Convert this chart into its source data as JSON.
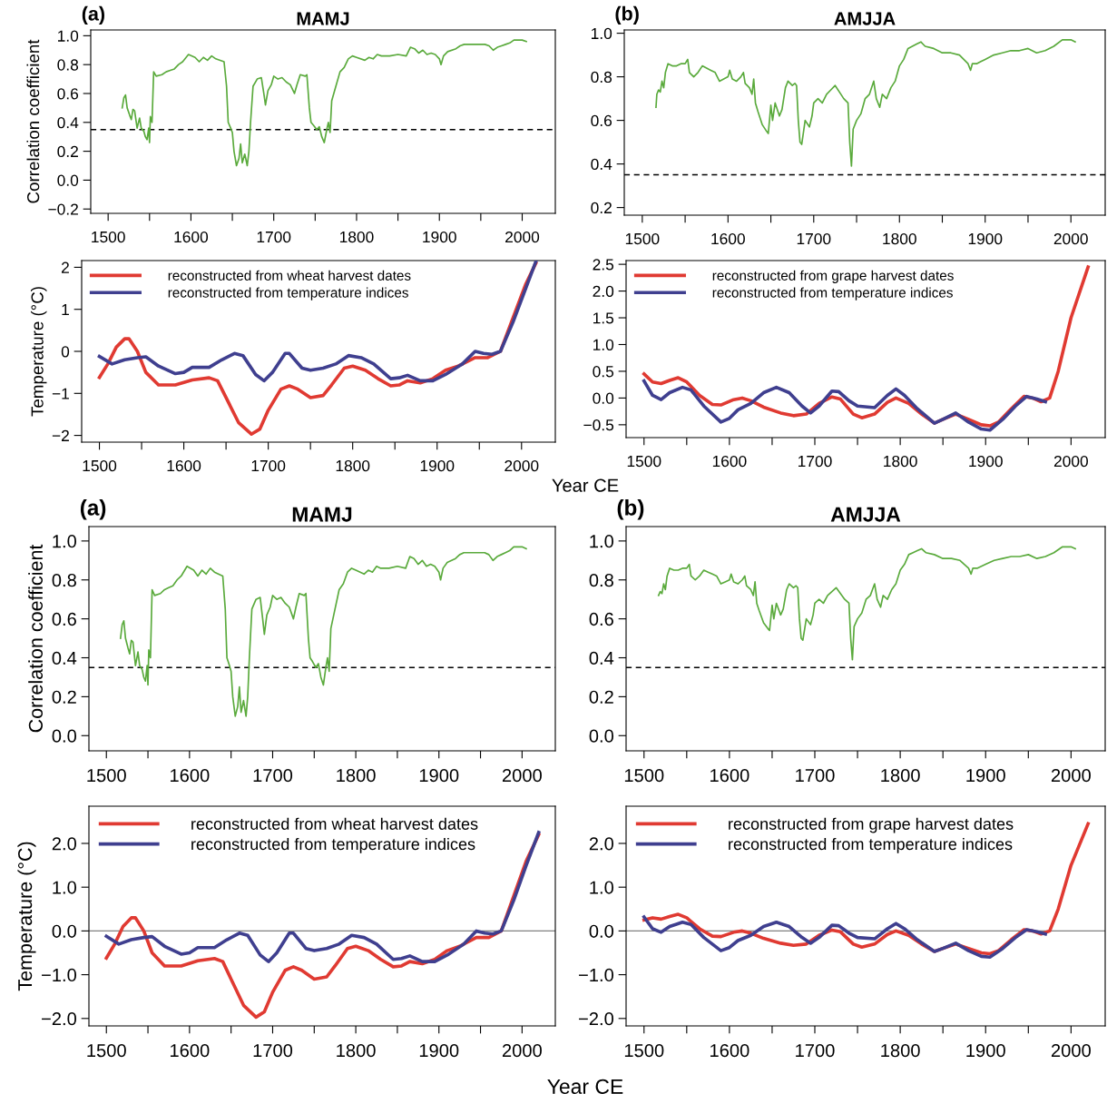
{
  "chart_data": [
    {
      "type": "line",
      "title": "MAMJ",
      "ylabel": "Correlation coefficient",
      "annotations": [
        "(a)"
      ],
      "xlim": [
        1479,
        2040
      ],
      "xticks": [
        1500,
        {
          "value": 1550,
          "label": null
        },
        1600,
        {
          "value": 1650,
          "label": null
        },
        1700,
        {
          "value": 1750,
          "label": null
        },
        1800,
        {
          "value": 1850,
          "label": null
        },
        1900,
        {
          "value": 1950,
          "label": null
        },
        2000
      ],
      "ylim": [
        -0.23,
        1.04
      ],
      "yticks": [
        {
          "value": -0.2,
          "label": "−0.2"
        },
        {
          "value": 0,
          "label": "0.0"
        },
        0.2,
        0.4,
        0.6,
        0.8,
        {
          "value": 1,
          "label": "1.0"
        }
      ],
      "ref_lines": [
        {
          "axis": "y",
          "value": 0.35,
          "color": "#000000",
          "line_style": "dashed"
        }
      ],
      "series": [
        {
          "color": "#5aaa3c",
          "x": [
            1517,
            1519,
            1521,
            1523,
            1526,
            1528,
            1530,
            1532,
            1535,
            1538,
            1540,
            1543,
            1545,
            1547,
            1549,
            1550,
            1551,
            1553,
            1555,
            1558,
            1565,
            1570,
            1575,
            1580,
            1585,
            1590,
            1597,
            1605,
            1610,
            1615,
            1620,
            1625,
            1630,
            1640,
            1643,
            1645,
            1648,
            1650,
            1652,
            1655,
            1658,
            1660,
            1662,
            1665,
            1668,
            1670,
            1672,
            1675,
            1680,
            1685,
            1688,
            1690,
            1693,
            1697,
            1700,
            1705,
            1710,
            1715,
            1720,
            1725,
            1728,
            1732,
            1738,
            1740,
            1743,
            1745,
            1748,
            1752,
            1755,
            1758,
            1761,
            1764,
            1766,
            1768,
            1770,
            1775,
            1780,
            1785,
            1790,
            1795,
            1800,
            1810,
            1815,
            1820,
            1825,
            1830,
            1840,
            1850,
            1860,
            1865,
            1870,
            1875,
            1880,
            1885,
            1890,
            1895,
            1900,
            1902,
            1905,
            1910,
            1920,
            1925,
            1930,
            1940,
            1950,
            1955,
            1960,
            1965,
            1970,
            1975,
            1980,
            1985,
            1990,
            1995,
            2000,
            2005
          ],
          "values": [
            0.5,
            0.57,
            0.59,
            0.5,
            0.45,
            0.42,
            0.49,
            0.48,
            0.36,
            0.43,
            0.36,
            0.34,
            0.3,
            0.28,
            0.36,
            0.26,
            0.44,
            0.4,
            0.75,
            0.72,
            0.73,
            0.75,
            0.76,
            0.77,
            0.8,
            0.82,
            0.87,
            0.85,
            0.82,
            0.85,
            0.83,
            0.86,
            0.84,
            0.82,
            0.65,
            0.4,
            0.36,
            0.33,
            0.2,
            0.1,
            0.15,
            0.25,
            0.12,
            0.18,
            0.1,
            0.2,
            0.4,
            0.65,
            0.7,
            0.71,
            0.6,
            0.52,
            0.62,
            0.66,
            0.72,
            0.7,
            0.71,
            0.68,
            0.66,
            0.6,
            0.66,
            0.73,
            0.72,
            0.73,
            0.5,
            0.4,
            0.38,
            0.35,
            0.37,
            0.3,
            0.26,
            0.35,
            0.4,
            0.33,
            0.55,
            0.65,
            0.75,
            0.78,
            0.84,
            0.86,
            0.85,
            0.83,
            0.85,
            0.84,
            0.87,
            0.86,
            0.86,
            0.87,
            0.86,
            0.92,
            0.91,
            0.88,
            0.9,
            0.87,
            0.88,
            0.87,
            0.84,
            0.8,
            0.86,
            0.89,
            0.91,
            0.93,
            0.94,
            0.94,
            0.94,
            0.94,
            0.93,
            0.9,
            0.92,
            0.93,
            0.94,
            0.95,
            0.97,
            0.97,
            0.97,
            0.96
          ]
        }
      ]
    },
    {
      "type": "line",
      "title": "AMJJA",
      "annotations": [
        "(b)"
      ],
      "xlim": [
        1479,
        2040
      ],
      "xticks": [
        1500,
        {
          "value": 1550,
          "label": null
        },
        1600,
        {
          "value": 1650,
          "label": null
        },
        1700,
        {
          "value": 1750,
          "label": null
        },
        1800,
        {
          "value": 1850,
          "label": null
        },
        1900,
        {
          "value": 1950,
          "label": null
        },
        2000
      ],
      "ylim": [
        0.165,
        1.015
      ],
      "yticks": [
        0.2,
        0.4,
        0.6,
        0.8,
        {
          "value": 1,
          "label": "1.0"
        }
      ],
      "ref_lines": [
        {
          "axis": "y",
          "value": 0.35,
          "color": "#000000",
          "line_style": "dashed"
        }
      ],
      "series": [
        {
          "color": "#5aaa3c",
          "x": [
            1516,
            1517,
            1519,
            1521,
            1523,
            1525,
            1527,
            1530,
            1535,
            1540,
            1545,
            1550,
            1553,
            1555,
            1560,
            1565,
            1570,
            1575,
            1580,
            1585,
            1590,
            1595,
            1600,
            1602,
            1605,
            1610,
            1615,
            1618,
            1620,
            1625,
            1628,
            1630,
            1632,
            1635,
            1640,
            1645,
            1647,
            1650,
            1652,
            1655,
            1660,
            1663,
            1667,
            1670,
            1675,
            1678,
            1680,
            1682,
            1684,
            1686,
            1690,
            1695,
            1698,
            1700,
            1705,
            1710,
            1715,
            1720,
            1725,
            1730,
            1735,
            1740,
            1742,
            1744,
            1746,
            1750,
            1755,
            1760,
            1765,
            1770,
            1773,
            1777,
            1780,
            1785,
            1790,
            1795,
            1800,
            1805,
            1810,
            1815,
            1820,
            1825,
            1830,
            1840,
            1850,
            1860,
            1870,
            1875,
            1880,
            1883,
            1885,
            1890,
            1895,
            1900,
            1910,
            1920,
            1930,
            1940,
            1950,
            1960,
            1970,
            1980,
            1990,
            2000,
            2005
          ],
          "values": [
            0.66,
            0.72,
            0.74,
            0.73,
            0.78,
            0.75,
            0.82,
            0.86,
            0.85,
            0.85,
            0.86,
            0.86,
            0.88,
            0.82,
            0.8,
            0.82,
            0.85,
            0.84,
            0.83,
            0.82,
            0.78,
            0.79,
            0.8,
            0.83,
            0.79,
            0.78,
            0.8,
            0.82,
            0.77,
            0.75,
            0.72,
            0.79,
            0.68,
            0.64,
            0.58,
            0.55,
            0.54,
            0.67,
            0.6,
            0.68,
            0.62,
            0.65,
            0.75,
            0.78,
            0.76,
            0.77,
            0.76,
            0.6,
            0.5,
            0.49,
            0.6,
            0.57,
            0.62,
            0.68,
            0.7,
            0.68,
            0.72,
            0.74,
            0.76,
            0.73,
            0.7,
            0.68,
            0.5,
            0.39,
            0.56,
            0.6,
            0.63,
            0.7,
            0.72,
            0.78,
            0.7,
            0.66,
            0.72,
            0.7,
            0.75,
            0.78,
            0.85,
            0.88,
            0.93,
            0.94,
            0.95,
            0.96,
            0.94,
            0.93,
            0.91,
            0.91,
            0.9,
            0.88,
            0.86,
            0.83,
            0.86,
            0.86,
            0.87,
            0.88,
            0.9,
            0.91,
            0.92,
            0.92,
            0.93,
            0.91,
            0.92,
            0.94,
            0.97,
            0.97,
            0.96
          ]
        }
      ]
    },
    {
      "type": "line",
      "ylabel": "Temperature (°C)",
      "xlabel": "Year CE",
      "legend": "top left",
      "xlim": [
        1479,
        2040
      ],
      "xticks": [
        1500,
        {
          "value": 1550,
          "label": null
        },
        1600,
        {
          "value": 1650,
          "label": null
        },
        1700,
        {
          "value": 1750,
          "label": null
        },
        1800,
        {
          "value": 1850,
          "label": null
        },
        1900,
        {
          "value": 1950,
          "label": null
        },
        2000
      ],
      "ylim": [
        -2.16,
        2.16
      ],
      "yticks": [
        {
          "value": -2,
          "label": "−2"
        },
        {
          "value": -1,
          "label": "−1"
        },
        0,
        1,
        2
      ],
      "series": [
        {
          "name": "reconstructed from wheat harvest dates",
          "color": "#e03a32",
          "x": [
            1500,
            1510,
            1520,
            1530,
            1535,
            1545,
            1555,
            1570,
            1590,
            1610,
            1630,
            1640,
            1650,
            1665,
            1680,
            1690,
            1700,
            1715,
            1725,
            1735,
            1750,
            1765,
            1775,
            1790,
            1800,
            1815,
            1830,
            1845,
            1855,
            1865,
            1880,
            1895,
            1910,
            1925,
            1945,
            1960,
            1975,
            1990,
            2005,
            2017
          ],
          "values": [
            -0.62,
            -0.3,
            0.1,
            0.3,
            0.3,
            0.0,
            -0.5,
            -0.8,
            -0.8,
            -0.68,
            -0.63,
            -0.7,
            -1.1,
            -1.7,
            -1.97,
            -1.85,
            -1.4,
            -0.9,
            -0.82,
            -0.9,
            -1.1,
            -1.05,
            -0.8,
            -0.4,
            -0.35,
            -0.45,
            -0.65,
            -0.82,
            -0.8,
            -0.7,
            -0.75,
            -0.65,
            -0.45,
            -0.35,
            -0.15,
            -0.15,
            0.0,
            0.8,
            1.6,
            2.1
          ]
        },
        {
          "name": "reconstructed from temperature indices",
          "color": "#3f3f8f",
          "x": [
            1500,
            1515,
            1530,
            1545,
            1555,
            1570,
            1590,
            1600,
            1610,
            1630,
            1645,
            1660,
            1670,
            1685,
            1695,
            1705,
            1720,
            1725,
            1740,
            1750,
            1765,
            1780,
            1795,
            1810,
            1825,
            1845,
            1855,
            1865,
            1880,
            1895,
            1910,
            1930,
            1945,
            1955,
            1965,
            1975,
            1990,
            2005,
            2017
          ],
          "values": [
            -0.12,
            -0.3,
            -0.2,
            -0.15,
            -0.13,
            -0.35,
            -0.53,
            -0.5,
            -0.38,
            -0.38,
            -0.2,
            -0.05,
            -0.1,
            -0.55,
            -0.7,
            -0.5,
            -0.05,
            -0.05,
            -0.4,
            -0.45,
            -0.4,
            -0.3,
            -0.1,
            -0.15,
            -0.3,
            -0.65,
            -0.63,
            -0.57,
            -0.7,
            -0.7,
            -0.55,
            -0.3,
            0.0,
            -0.05,
            -0.07,
            0.0,
            0.7,
            1.5,
            2.14
          ]
        }
      ]
    },
    {
      "type": "line",
      "legend": "top left",
      "xlim": [
        1479,
        2040
      ],
      "xticks": [
        1500,
        {
          "value": 1550,
          "label": null
        },
        1600,
        {
          "value": 1650,
          "label": null
        },
        1700,
        {
          "value": 1750,
          "label": null
        },
        1800,
        {
          "value": 1850,
          "label": null
        },
        1900,
        {
          "value": 1950,
          "label": null
        },
        2000
      ],
      "ylim": [
        -0.74,
        2.57
      ],
      "yticks": [
        {
          "value": -0.5,
          "label": "−0.5"
        },
        {
          "value": 0,
          "label": "0.0"
        },
        0.5,
        {
          "value": 1,
          "label": "1.0"
        },
        1.5,
        {
          "value": 2,
          "label": "2.0"
        },
        2.5
      ],
      "series": [
        {
          "name": "reconstructed from grape harvest dates",
          "color": "#e03a32",
          "x": [
            1500,
            1510,
            1520,
            1530,
            1540,
            1550,
            1565,
            1580,
            1590,
            1605,
            1615,
            1625,
            1640,
            1660,
            1675,
            1690,
            1705,
            1720,
            1730,
            1745,
            1755,
            1770,
            1785,
            1795,
            1810,
            1825,
            1840,
            1850,
            1865,
            1880,
            1895,
            1905,
            1915,
            1930,
            1945,
            1955,
            1965,
            1975,
            1985,
            2000,
            2020
          ],
          "values": [
            0.45,
            0.3,
            0.27,
            0.33,
            0.38,
            0.3,
            0.05,
            -0.12,
            -0.13,
            -0.03,
            0.0,
            -0.05,
            -0.17,
            -0.28,
            -0.33,
            -0.3,
            -0.1,
            0.02,
            -0.02,
            -0.3,
            -0.37,
            -0.3,
            -0.08,
            0.0,
            -0.1,
            -0.3,
            -0.47,
            -0.4,
            -0.3,
            -0.4,
            -0.5,
            -0.52,
            -0.45,
            -0.2,
            0.03,
            0.0,
            -0.07,
            0.0,
            0.5,
            1.5,
            2.45
          ]
        },
        {
          "name": "reconstructed from temperature indices",
          "color": "#3f3f8f",
          "x": [
            1500,
            1510,
            1520,
            1530,
            1545,
            1555,
            1570,
            1590,
            1600,
            1610,
            1625,
            1640,
            1655,
            1670,
            1685,
            1695,
            1705,
            1720,
            1728,
            1740,
            1750,
            1770,
            1785,
            1795,
            1805,
            1820,
            1840,
            1850,
            1865,
            1880,
            1895,
            1905,
            1920,
            1935,
            1948,
            1960,
            1970
          ],
          "values": [
            0.32,
            0.05,
            -0.03,
            0.1,
            0.2,
            0.15,
            -0.15,
            -0.45,
            -0.38,
            -0.22,
            -0.1,
            0.1,
            0.2,
            0.1,
            -0.15,
            -0.28,
            -0.15,
            0.13,
            0.12,
            -0.05,
            -0.15,
            -0.18,
            0.05,
            0.17,
            0.05,
            -0.2,
            -0.47,
            -0.4,
            -0.28,
            -0.45,
            -0.58,
            -0.6,
            -0.4,
            -0.15,
            0.03,
            -0.02,
            -0.07
          ]
        }
      ]
    },
    {
      "type": "line",
      "title": "MAMJ",
      "ylabel": "Correlation coefficient",
      "annotations": [
        "(a)"
      ],
      "xlim": [
        1479,
        2040
      ],
      "xticks": [
        1500,
        {
          "value": 1550,
          "label": null
        },
        1600,
        {
          "value": 1650,
          "label": null
        },
        1700,
        {
          "value": 1750,
          "label": null
        },
        1800,
        {
          "value": 1850,
          "label": null
        },
        1900,
        {
          "value": 1950,
          "label": null
        },
        2000
      ],
      "ylim": [
        -0.078,
        1.074
      ],
      "yticks": [
        {
          "value": 0,
          "label": "0.0"
        },
        {
          "value": 0.2,
          "label": "0.2"
        },
        {
          "value": 0.4,
          "label": "0.4"
        },
        {
          "value": 0.6,
          "label": "0.6"
        },
        {
          "value": 0.8,
          "label": "0.8"
        },
        {
          "value": 1,
          "label": "1.0"
        }
      ],
      "ref_lines": [
        {
          "axis": "y",
          "value": 0.35,
          "color": "#000000",
          "line_style": "dashed"
        }
      ],
      "series": [
        {
          "color": "#5aaa3c",
          "x": [
            1517,
            1519,
            1521,
            1523,
            1526,
            1528,
            1530,
            1532,
            1535,
            1538,
            1540,
            1543,
            1545,
            1547,
            1549,
            1550,
            1551,
            1553,
            1555,
            1558,
            1565,
            1570,
            1575,
            1580,
            1585,
            1590,
            1597,
            1605,
            1610,
            1615,
            1620,
            1625,
            1630,
            1640,
            1643,
            1645,
            1648,
            1650,
            1652,
            1655,
            1658,
            1660,
            1662,
            1665,
            1668,
            1670,
            1672,
            1675,
            1680,
            1685,
            1688,
            1690,
            1693,
            1697,
            1700,
            1705,
            1710,
            1715,
            1720,
            1725,
            1728,
            1732,
            1738,
            1740,
            1743,
            1745,
            1748,
            1752,
            1755,
            1758,
            1761,
            1764,
            1766,
            1768,
            1770,
            1775,
            1780,
            1785,
            1790,
            1795,
            1800,
            1810,
            1815,
            1820,
            1825,
            1830,
            1840,
            1850,
            1860,
            1865,
            1870,
            1875,
            1880,
            1885,
            1890,
            1895,
            1900,
            1902,
            1905,
            1910,
            1920,
            1925,
            1930,
            1940,
            1950,
            1955,
            1960,
            1965,
            1970,
            1975,
            1980,
            1985,
            1990,
            1995,
            2000,
            2005
          ],
          "values": [
            0.5,
            0.57,
            0.59,
            0.5,
            0.45,
            0.42,
            0.49,
            0.48,
            0.36,
            0.43,
            0.36,
            0.34,
            0.3,
            0.28,
            0.36,
            0.26,
            0.44,
            0.4,
            0.75,
            0.72,
            0.73,
            0.75,
            0.76,
            0.77,
            0.8,
            0.82,
            0.87,
            0.85,
            0.82,
            0.85,
            0.83,
            0.86,
            0.84,
            0.82,
            0.65,
            0.4,
            0.36,
            0.33,
            0.2,
            0.1,
            0.15,
            0.25,
            0.12,
            0.18,
            0.1,
            0.2,
            0.4,
            0.65,
            0.7,
            0.71,
            0.6,
            0.52,
            0.62,
            0.66,
            0.72,
            0.7,
            0.71,
            0.68,
            0.66,
            0.6,
            0.66,
            0.73,
            0.72,
            0.73,
            0.5,
            0.4,
            0.38,
            0.35,
            0.37,
            0.3,
            0.26,
            0.35,
            0.4,
            0.33,
            0.55,
            0.65,
            0.75,
            0.78,
            0.84,
            0.86,
            0.85,
            0.83,
            0.85,
            0.84,
            0.87,
            0.86,
            0.86,
            0.87,
            0.86,
            0.92,
            0.91,
            0.88,
            0.9,
            0.87,
            0.88,
            0.87,
            0.84,
            0.8,
            0.86,
            0.89,
            0.91,
            0.93,
            0.94,
            0.94,
            0.94,
            0.94,
            0.93,
            0.9,
            0.92,
            0.93,
            0.94,
            0.95,
            0.97,
            0.97,
            0.97,
            0.96
          ]
        }
      ]
    },
    {
      "type": "line",
      "title": "AMJJA",
      "annotations": [
        "(b)"
      ],
      "xlim": [
        1479,
        2040
      ],
      "xticks": [
        1500,
        {
          "value": 1550,
          "label": null
        },
        1600,
        {
          "value": 1650,
          "label": null
        },
        1700,
        {
          "value": 1750,
          "label": null
        },
        1800,
        {
          "value": 1850,
          "label": null
        },
        1900,
        {
          "value": 1950,
          "label": null
        },
        2000
      ],
      "ylim": [
        -0.078,
        1.074
      ],
      "yticks": [
        {
          "value": 0,
          "label": "0.0"
        },
        {
          "value": 0.2,
          "label": "0.2"
        },
        {
          "value": 0.4,
          "label": "0.4"
        },
        {
          "value": 0.6,
          "label": "0.6"
        },
        {
          "value": 0.8,
          "label": "0.8"
        },
        {
          "value": 1,
          "label": "1.0"
        }
      ],
      "ref_lines": [
        {
          "axis": "y",
          "value": 0.35,
          "color": "#000000",
          "line_style": "dashed"
        }
      ],
      "series": [
        {
          "color": "#5aaa3c",
          "x": [
            1517,
            1519,
            1521,
            1523,
            1525,
            1527,
            1530,
            1535,
            1540,
            1545,
            1550,
            1553,
            1555,
            1560,
            1565,
            1570,
            1575,
            1580,
            1585,
            1590,
            1595,
            1600,
            1602,
            1605,
            1610,
            1615,
            1618,
            1620,
            1625,
            1628,
            1630,
            1632,
            1635,
            1640,
            1645,
            1647,
            1650,
            1652,
            1655,
            1660,
            1663,
            1667,
            1670,
            1675,
            1678,
            1680,
            1682,
            1684,
            1686,
            1690,
            1695,
            1698,
            1700,
            1705,
            1710,
            1715,
            1720,
            1725,
            1730,
            1735,
            1740,
            1742,
            1744,
            1746,
            1750,
            1755,
            1760,
            1765,
            1770,
            1773,
            1777,
            1780,
            1785,
            1790,
            1795,
            1800,
            1805,
            1810,
            1815,
            1820,
            1825,
            1830,
            1840,
            1850,
            1860,
            1870,
            1875,
            1880,
            1883,
            1885,
            1890,
            1895,
            1900,
            1910,
            1920,
            1930,
            1940,
            1950,
            1960,
            1970,
            1980,
            1990,
            2000,
            2005
          ],
          "values": [
            0.72,
            0.74,
            0.73,
            0.78,
            0.75,
            0.82,
            0.86,
            0.85,
            0.85,
            0.86,
            0.86,
            0.88,
            0.82,
            0.8,
            0.82,
            0.85,
            0.84,
            0.83,
            0.82,
            0.78,
            0.79,
            0.8,
            0.83,
            0.79,
            0.78,
            0.8,
            0.82,
            0.77,
            0.75,
            0.72,
            0.79,
            0.68,
            0.64,
            0.58,
            0.55,
            0.54,
            0.67,
            0.6,
            0.68,
            0.62,
            0.65,
            0.75,
            0.78,
            0.76,
            0.77,
            0.76,
            0.6,
            0.5,
            0.49,
            0.6,
            0.57,
            0.62,
            0.68,
            0.7,
            0.68,
            0.72,
            0.74,
            0.76,
            0.73,
            0.7,
            0.68,
            0.5,
            0.39,
            0.56,
            0.6,
            0.63,
            0.7,
            0.72,
            0.78,
            0.7,
            0.66,
            0.72,
            0.7,
            0.75,
            0.78,
            0.85,
            0.88,
            0.93,
            0.94,
            0.95,
            0.96,
            0.94,
            0.93,
            0.91,
            0.91,
            0.9,
            0.88,
            0.86,
            0.83,
            0.86,
            0.86,
            0.87,
            0.88,
            0.9,
            0.91,
            0.92,
            0.92,
            0.93,
            0.91,
            0.92,
            0.94,
            0.97,
            0.97,
            0.96
          ]
        }
      ]
    },
    {
      "type": "line",
      "ylabel": "Temperature (°C)",
      "xlabel": "Year CE",
      "legend": "top left",
      "xlim": [
        1479,
        2040
      ],
      "xticks": [
        1500,
        {
          "value": 1550,
          "label": null
        },
        1600,
        {
          "value": 1650,
          "label": null
        },
        1700,
        {
          "value": 1750,
          "label": null
        },
        1800,
        {
          "value": 1850,
          "label": null
        },
        1900,
        {
          "value": 1950,
          "label": null
        },
        2000
      ],
      "ylim": [
        -2.17,
        2.85
      ],
      "yticks": [
        {
          "value": -2,
          "label": "−2.0"
        },
        {
          "value": -1,
          "label": "−1.0"
        },
        {
          "value": 0,
          "label": "0.0"
        },
        {
          "value": 1,
          "label": "1.0"
        },
        {
          "value": 2,
          "label": "2.0"
        }
      ],
      "ref_lines": [
        {
          "axis": "y",
          "value": 0,
          "color": "#808080",
          "line_style": "solid"
        }
      ],
      "series": [
        {
          "name": "reconstructed from wheat harvest dates",
          "color": "#e03a32",
          "x": [
            1500,
            1510,
            1520,
            1530,
            1535,
            1545,
            1555,
            1570,
            1590,
            1610,
            1630,
            1640,
            1650,
            1665,
            1680,
            1690,
            1700,
            1715,
            1725,
            1735,
            1750,
            1765,
            1775,
            1790,
            1800,
            1815,
            1830,
            1845,
            1855,
            1865,
            1880,
            1895,
            1910,
            1925,
            1945,
            1960,
            1975,
            1990,
            2005,
            2020
          ],
          "values": [
            -0.62,
            -0.3,
            0.1,
            0.3,
            0.3,
            0.0,
            -0.5,
            -0.8,
            -0.8,
            -0.68,
            -0.63,
            -0.7,
            -1.1,
            -1.7,
            -1.97,
            -1.85,
            -1.4,
            -0.9,
            -0.82,
            -0.9,
            -1.1,
            -1.05,
            -0.8,
            -0.4,
            -0.35,
            -0.45,
            -0.65,
            -0.82,
            -0.8,
            -0.7,
            -0.75,
            -0.65,
            -0.45,
            -0.35,
            -0.15,
            -0.15,
            0.0,
            0.8,
            1.6,
            2.2
          ]
        },
        {
          "name": "reconstructed from temperature indices",
          "color": "#3f3f8f",
          "x": [
            1500,
            1515,
            1530,
            1545,
            1555,
            1570,
            1590,
            1600,
            1610,
            1630,
            1645,
            1660,
            1670,
            1685,
            1695,
            1705,
            1720,
            1725,
            1740,
            1750,
            1765,
            1780,
            1795,
            1810,
            1825,
            1845,
            1855,
            1865,
            1880,
            1895,
            1910,
            1930,
            1945,
            1955,
            1965,
            1975,
            1990,
            2005,
            2020
          ],
          "values": [
            -0.12,
            -0.3,
            -0.2,
            -0.15,
            -0.13,
            -0.35,
            -0.53,
            -0.5,
            -0.38,
            -0.38,
            -0.2,
            -0.05,
            -0.1,
            -0.55,
            -0.7,
            -0.5,
            -0.05,
            -0.05,
            -0.4,
            -0.45,
            -0.4,
            -0.3,
            -0.1,
            -0.15,
            -0.3,
            -0.65,
            -0.63,
            -0.57,
            -0.7,
            -0.7,
            -0.55,
            -0.3,
            0.0,
            -0.05,
            -0.07,
            0.0,
            0.7,
            1.5,
            2.25
          ]
        }
      ]
    },
    {
      "type": "line",
      "legend": "top left",
      "xlim": [
        1479,
        2040
      ],
      "xticks": [
        1500,
        {
          "value": 1550,
          "label": null
        },
        1600,
        {
          "value": 1650,
          "label": null
        },
        1700,
        {
          "value": 1750,
          "label": null
        },
        1800,
        {
          "value": 1850,
          "label": null
        },
        1900,
        {
          "value": 1950,
          "label": null
        },
        2000
      ],
      "ylim": [
        -2.17,
        2.85
      ],
      "yticks": [
        {
          "value": -2,
          "label": "−2.0"
        },
        {
          "value": -1,
          "label": "−1.0"
        },
        {
          "value": 0,
          "label": "0.0"
        },
        {
          "value": 1,
          "label": "1.0"
        },
        {
          "value": 2,
          "label": "2.0"
        }
      ],
      "ref_lines": [
        {
          "axis": "y",
          "value": 0,
          "color": "#808080",
          "line_style": "solid"
        }
      ],
      "series": [
        {
          "name": "reconstructed from grape harvest dates",
          "color": "#e03a32",
          "x": [
            1500,
            1510,
            1520,
            1530,
            1540,
            1550,
            1565,
            1580,
            1590,
            1605,
            1615,
            1625,
            1640,
            1660,
            1675,
            1690,
            1705,
            1720,
            1730,
            1745,
            1755,
            1770,
            1785,
            1795,
            1810,
            1825,
            1840,
            1850,
            1865,
            1880,
            1895,
            1905,
            1915,
            1930,
            1945,
            1955,
            1965,
            1975,
            1985,
            2000,
            2020
          ],
          "values": [
            0.25,
            0.3,
            0.27,
            0.33,
            0.38,
            0.3,
            0.05,
            -0.12,
            -0.13,
            -0.03,
            0.0,
            -0.05,
            -0.17,
            -0.28,
            -0.33,
            -0.3,
            -0.1,
            0.02,
            -0.02,
            -0.3,
            -0.37,
            -0.3,
            -0.08,
            0.0,
            -0.1,
            -0.3,
            -0.47,
            -0.4,
            -0.3,
            -0.4,
            -0.5,
            -0.52,
            -0.45,
            -0.2,
            0.03,
            0.0,
            -0.07,
            0.0,
            0.5,
            1.5,
            2.45
          ]
        },
        {
          "name": "reconstructed from temperature indices",
          "color": "#3f3f8f",
          "x": [
            1500,
            1510,
            1520,
            1530,
            1545,
            1555,
            1570,
            1590,
            1600,
            1610,
            1625,
            1640,
            1655,
            1670,
            1685,
            1695,
            1705,
            1720,
            1728,
            1740,
            1750,
            1770,
            1785,
            1795,
            1805,
            1820,
            1840,
            1850,
            1865,
            1880,
            1895,
            1905,
            1920,
            1935,
            1948,
            1960,
            1970
          ],
          "values": [
            0.32,
            0.05,
            -0.03,
            0.1,
            0.2,
            0.15,
            -0.15,
            -0.45,
            -0.38,
            -0.22,
            -0.1,
            0.1,
            0.2,
            0.1,
            -0.15,
            -0.28,
            -0.15,
            0.13,
            0.12,
            -0.05,
            -0.15,
            -0.18,
            0.05,
            0.17,
            0.05,
            -0.2,
            -0.47,
            -0.4,
            -0.28,
            -0.45,
            -0.58,
            -0.6,
            -0.4,
            -0.15,
            0.03,
            -0.02,
            -0.07
          ]
        }
      ]
    }
  ]
}
